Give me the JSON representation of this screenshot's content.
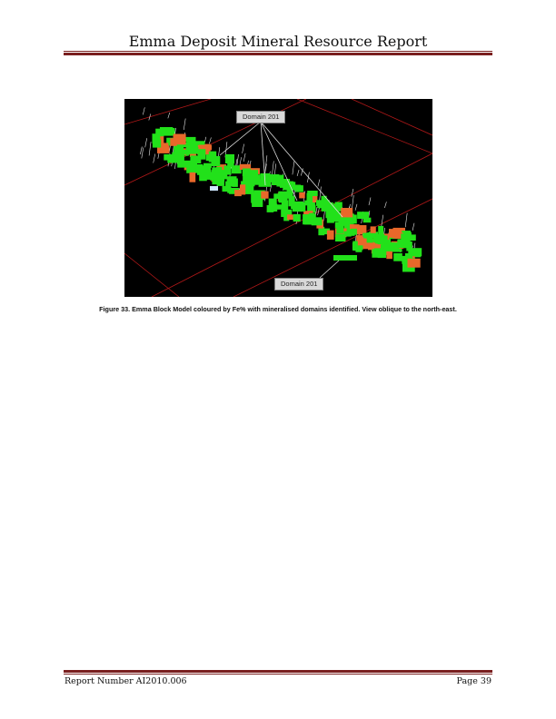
{
  "header": {
    "title": "Emma Deposit Mineral Resource Report"
  },
  "figure": {
    "callout_top": "Domain 201",
    "callout_bottom": "Domain 201",
    "caption": "Figure 33. Emma Block Model coloured by Fe% with mineralised domains identified. View oblique to the north-east."
  },
  "footer": {
    "report_number": "Report Number AI2010.006",
    "page": "Page 39"
  },
  "colors": {
    "rule": "#7a1f1f",
    "block_green": "#22e11a",
    "block_orange": "#e8682a",
    "section_line": "#b01818"
  }
}
